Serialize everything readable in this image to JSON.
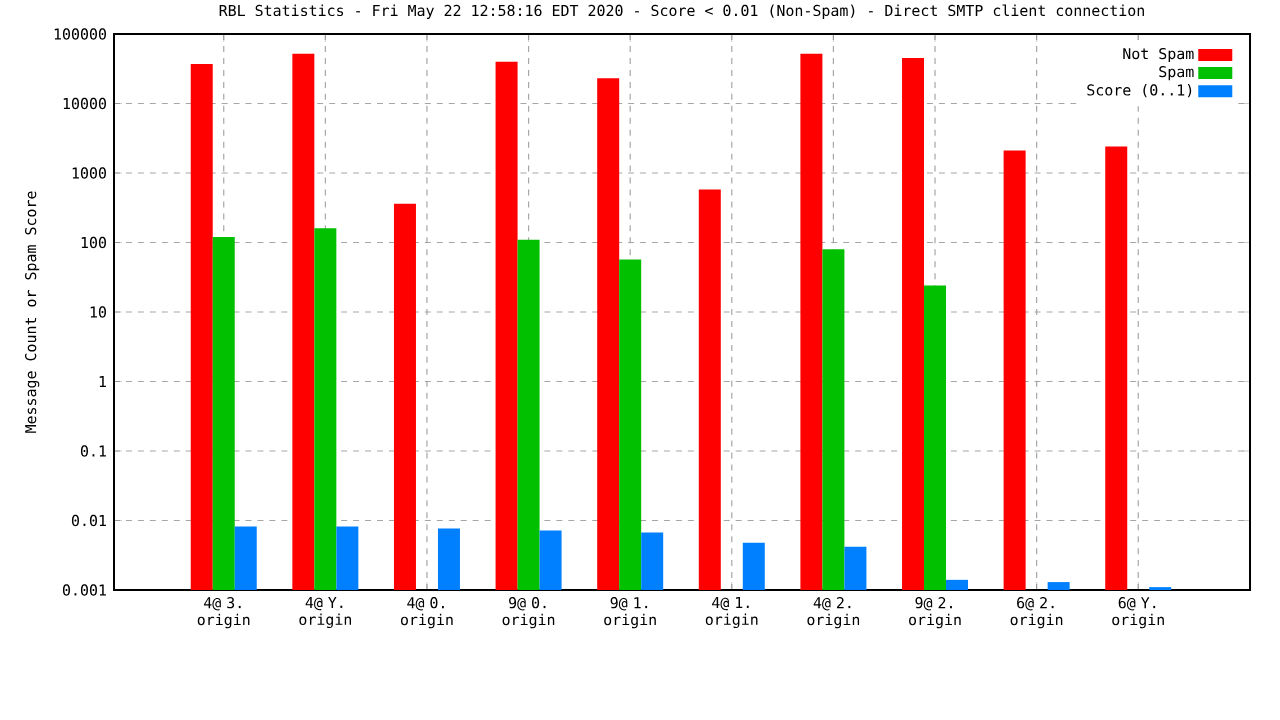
{
  "chart_data": {
    "type": "bar",
    "title": "RBL Statistics - Fri May 22 12:58:16 EDT 2020 - Score < 0.01 (Non-Spam) - Direct SMTP client connection",
    "ylabel": "Message Count or Spam Score",
    "categories": [
      "4@ 3. origin",
      "4@ Y. origin",
      "4@ 0. origin",
      "9@ 0. origin",
      "9@ 1. origin",
      "4@ 1. origin",
      "4@ 2. origin",
      "9@ 2. origin",
      "6@ 2. origin",
      "6@ Y. origin"
    ],
    "series": [
      {
        "name": "Not Spam",
        "color": "#ff0000",
        "values": [
          37000,
          52000,
          360,
          40000,
          23000,
          580,
          52000,
          45000,
          2100,
          2400
        ]
      },
      {
        "name": "Spam",
        "color": "#00c000",
        "values": [
          120,
          160,
          null,
          110,
          57,
          null,
          80,
          24,
          null,
          null
        ]
      },
      {
        "name": "Score (0..1)",
        "color": "#0080ff",
        "values": [
          0.0082,
          0.0082,
          0.0077,
          0.0072,
          0.0067,
          0.0048,
          0.0042,
          0.0014,
          0.0013,
          0.0011
        ]
      }
    ],
    "log": true,
    "ylim": [
      0.001,
      100000
    ],
    "yticks": [
      0.001,
      0.01,
      0.1,
      1,
      10,
      100,
      1000,
      10000,
      100000
    ],
    "grid": true,
    "legend": "top right"
  }
}
